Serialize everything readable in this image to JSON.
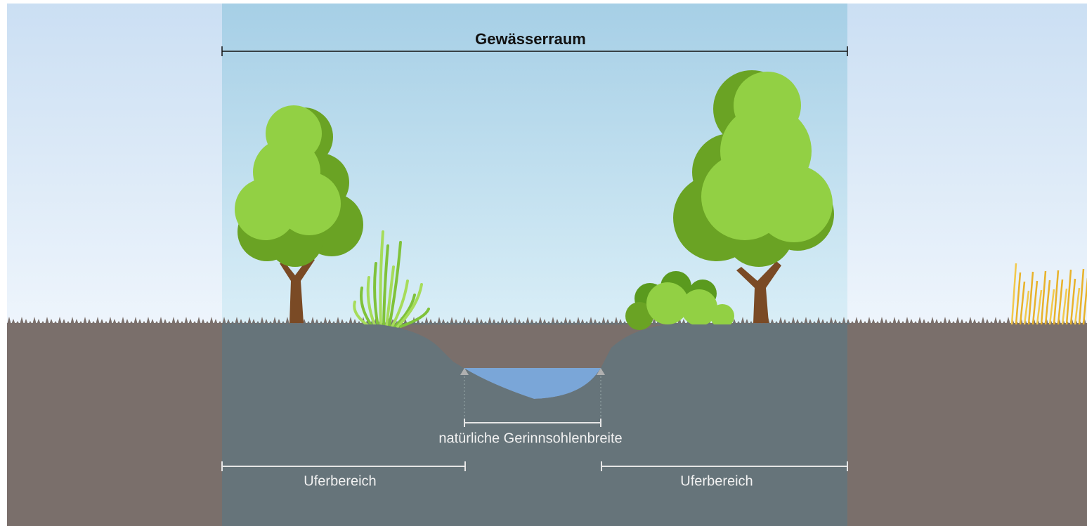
{
  "title": "Gewässerraum",
  "labels": {
    "channel_width": "natürliche Gerinnsohlenbreite",
    "left_bank": "Uferbereich",
    "right_bank": "Uferbereich"
  }
}
